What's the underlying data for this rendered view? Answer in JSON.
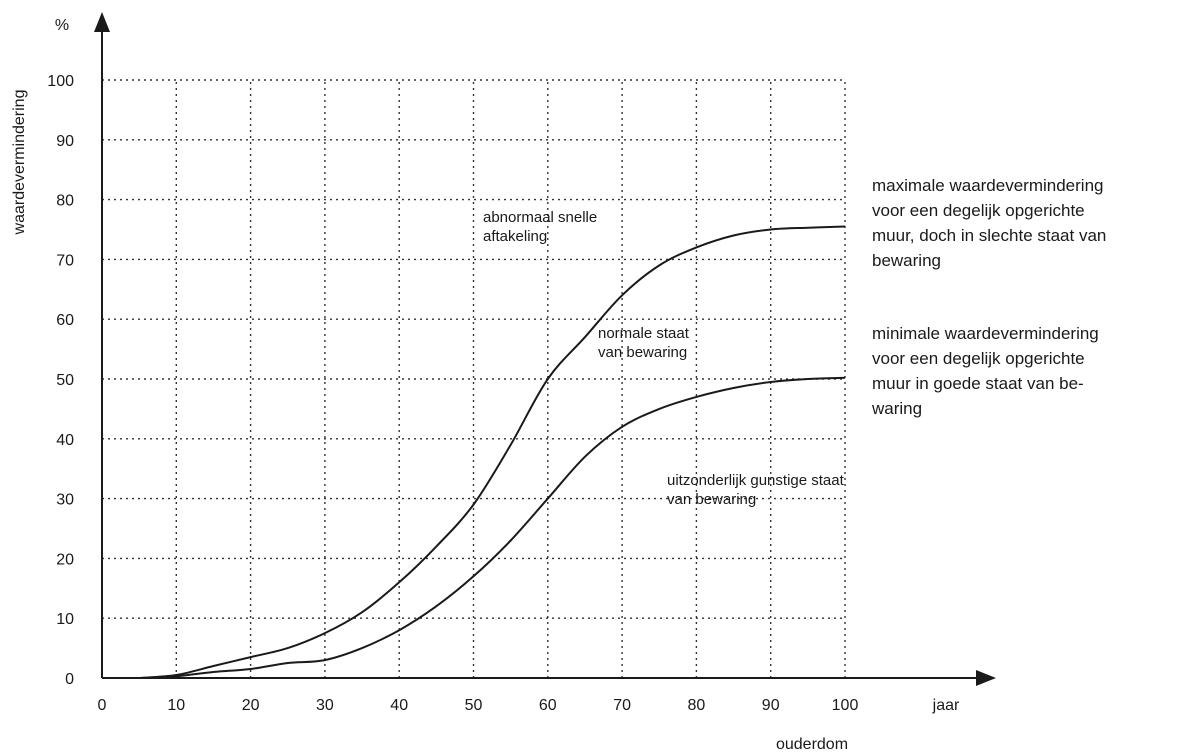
{
  "chart_data": {
    "type": "line",
    "y_unit": "%",
    "ylabel": "waardevermindering",
    "xlabel": "ouderdom",
    "x_unit": "jaar",
    "xlim": [
      0,
      100
    ],
    "ylim": [
      0,
      100
    ],
    "x_ticks": [
      "0",
      "10",
      "20",
      "30",
      "40",
      "50",
      "60",
      "70",
      "80",
      "90",
      "100"
    ],
    "y_ticks": [
      "0",
      "10",
      "20",
      "30",
      "40",
      "50",
      "60",
      "70",
      "80",
      "90",
      "100"
    ],
    "grid": true,
    "series": [
      {
        "x": [
          5,
          10,
          15,
          20,
          25,
          30,
          35,
          40,
          45,
          50,
          55,
          60,
          65,
          70,
          75,
          80,
          85,
          90,
          95,
          100
        ],
        "y": [
          0,
          0.5,
          2,
          3.5,
          5,
          7.5,
          11,
          16,
          22,
          29,
          39,
          50,
          57,
          64,
          69,
          72,
          74,
          75,
          75.3,
          75.5
        ]
      },
      {
        "x": [
          5,
          10,
          15,
          20,
          25,
          30,
          35,
          40,
          45,
          50,
          55,
          60,
          65,
          70,
          75,
          80,
          85,
          90,
          95,
          100
        ],
        "y": [
          0,
          0.3,
          1,
          1.5,
          2.5,
          3,
          5,
          8,
          12,
          17,
          23,
          30,
          37,
          42,
          45,
          47,
          48.5,
          49.5,
          50,
          50.2
        ]
      }
    ],
    "annotations": [
      {
        "lines": [
          "abnormaal snelle",
          "aftakeling"
        ]
      },
      {
        "lines": [
          "normale staat",
          "van bewaring"
        ]
      },
      {
        "lines": [
          "uitzonderlijk gunstige staat",
          "van bewaring"
        ]
      }
    ],
    "side_notes": [
      {
        "lines": [
          "maximale waardevermindering",
          "voor een degelijk opgerichte",
          "muur, doch in slechte staat van",
          "bewaring"
        ]
      },
      {
        "lines": [
          "minimale waardevermindering",
          "voor een degelijk opgerichte",
          "muur in goede staat van be-",
          "waring"
        ]
      }
    ],
    "colors": {
      "line": "#1a1a1a",
      "grid": "#333333"
    }
  }
}
